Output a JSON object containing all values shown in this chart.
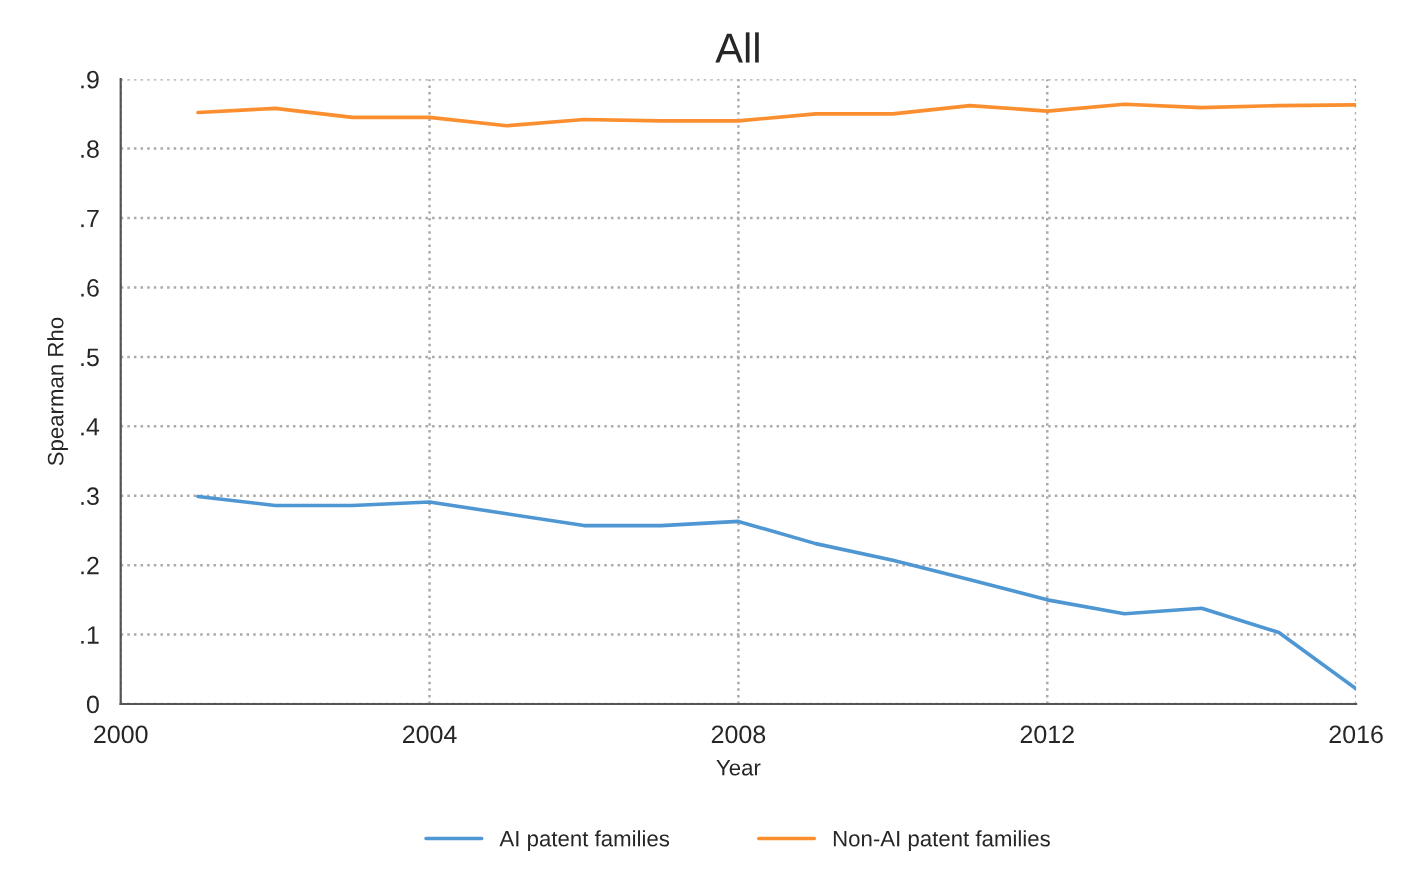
{
  "chart_data": {
    "type": "line",
    "title": "All",
    "xlabel": "Year",
    "ylabel": "Spearman Rho",
    "x": [
      2001,
      2002,
      2003,
      2004,
      2005,
      2006,
      2007,
      2008,
      2009,
      2010,
      2011,
      2012,
      2013,
      2014,
      2015,
      2016
    ],
    "series": [
      {
        "name": "AI patent families",
        "color": "#4f97d3",
        "values": [
          0.299,
          0.286,
          0.286,
          0.291,
          0.274,
          0.257,
          0.257,
          0.263,
          0.231,
          0.207,
          0.179,
          0.15,
          0.13,
          0.138,
          0.103,
          0.022
        ]
      },
      {
        "name": "Non-AI patent families",
        "color": "#fb8f2f",
        "values": [
          0.852,
          0.858,
          0.845,
          0.845,
          0.833,
          0.842,
          0.84,
          0.84,
          0.85,
          0.85,
          0.862,
          0.854,
          0.864,
          0.859,
          0.862,
          0.863
        ]
      }
    ],
    "xlim": [
      2000,
      2016
    ],
    "xticks": [
      2000,
      2004,
      2008,
      2012,
      2016
    ],
    "ylim": [
      0,
      0.9
    ],
    "yticks": [
      {
        "value": 0,
        "label": "0"
      },
      {
        "value": 0.1,
        "label": ".1"
      },
      {
        "value": 0.2,
        "label": ".2"
      },
      {
        "value": 0.3,
        "label": ".3"
      },
      {
        "value": 0.4,
        "label": ".4"
      },
      {
        "value": 0.5,
        "label": ".5"
      },
      {
        "value": 0.6,
        "label": ".6"
      },
      {
        "value": 0.7,
        "label": ".7"
      },
      {
        "value": 0.8,
        "label": ".8"
      },
      {
        "value": 0.9,
        "label": ".9"
      }
    ],
    "grid": true,
    "legend": "bottom",
    "line_style": "solid",
    "marker": "none"
  }
}
